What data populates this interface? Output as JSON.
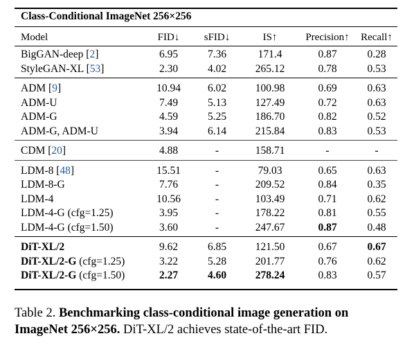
{
  "table": {
    "title": "Class-Conditional ImageNet 256×256",
    "headers": [
      "Model",
      "FID↓",
      "sFID↓",
      "IS↑",
      "Precision↑",
      "Recall↑"
    ],
    "groups": [
      {
        "rows": [
          {
            "model": "BigGAN-deep",
            "cite": "[2]",
            "cite_num": "2",
            "fid": "6.95",
            "sfid": "7.36",
            "is": "171.4",
            "precision": "0.87",
            "recall": "0.28"
          },
          {
            "model": "StyleGAN-XL",
            "cite": "[53]",
            "cite_num": "53",
            "fid": "2.30",
            "sfid": "4.02",
            "is": "265.12",
            "precision": "0.78",
            "recall": "0.53"
          }
        ]
      },
      {
        "rows": [
          {
            "model": "ADM",
            "cite": "[9]",
            "cite_num": "9",
            "fid": "10.94",
            "sfid": "6.02",
            "is": "100.98",
            "precision": "0.69",
            "recall": "0.63"
          },
          {
            "model": "ADM-U",
            "cite": "",
            "cite_num": "",
            "fid": "7.49",
            "sfid": "5.13",
            "is": "127.49",
            "precision": "0.72",
            "recall": "0.63"
          },
          {
            "model": "ADM-G",
            "cite": "",
            "cite_num": "",
            "fid": "4.59",
            "sfid": "5.25",
            "is": "186.70",
            "precision": "0.82",
            "recall": "0.52"
          },
          {
            "model": "ADM-G, ADM-U",
            "cite": "",
            "cite_num": "",
            "fid": "3.94",
            "sfid": "6.14",
            "is": "215.84",
            "precision": "0.83",
            "recall": "0.53"
          }
        ]
      },
      {
        "rows": [
          {
            "model": "CDM",
            "cite": "[20]",
            "cite_num": "20",
            "fid": "4.88",
            "sfid": "-",
            "is": "158.71",
            "precision": "-",
            "recall": "-"
          }
        ]
      },
      {
        "rows": [
          {
            "model": "LDM-8",
            "cite": "[48]",
            "cite_num": "48",
            "fid": "15.51",
            "sfid": "-",
            "is": "79.03",
            "precision": "0.65",
            "recall": "0.63"
          },
          {
            "model": "LDM-8-G",
            "cite": "",
            "cite_num": "",
            "fid": "7.76",
            "sfid": "-",
            "is": "209.52",
            "precision": "0.84",
            "recall": "0.35"
          },
          {
            "model": "LDM-4",
            "cite": "",
            "cite_num": "",
            "fid": "10.56",
            "sfid": "-",
            "is": "103.49",
            "precision": "0.71",
            "recall": "0.62"
          },
          {
            "model": "LDM-4-G (cfg=1.25)",
            "cite": "",
            "cite_num": "",
            "fid": "3.95",
            "sfid": "-",
            "is": "178.22",
            "precision": "0.81",
            "recall": "0.55"
          },
          {
            "model": "LDM-4-G (cfg=1.50)",
            "cite": "",
            "cite_num": "",
            "fid": "3.60",
            "sfid": "-",
            "is": "247.67",
            "precision": "0.87",
            "recall": "0.48",
            "bold": [
              "precision"
            ]
          }
        ]
      },
      {
        "rows": [
          {
            "model": "DiT-XL/2",
            "cite": "",
            "cite_num": "",
            "fid": "9.62",
            "sfid": "6.85",
            "is": "121.50",
            "precision": "0.67",
            "recall": "0.67",
            "bold": [
              "model",
              "recall"
            ]
          },
          {
            "model": "DiT-XL/2-G",
            "model_suffix": " (cfg=1.25)",
            "cite": "",
            "cite_num": "",
            "fid": "3.22",
            "sfid": "5.28",
            "is": "201.77",
            "precision": "0.76",
            "recall": "0.62",
            "bold": [
              "model"
            ]
          },
          {
            "model": "DiT-XL/2-G",
            "model_suffix": " (cfg=1.50)",
            "cite": "",
            "cite_num": "",
            "fid": "2.27",
            "sfid": "4.60",
            "is": "278.24",
            "precision": "0.83",
            "recall": "0.57",
            "bold": [
              "model",
              "fid",
              "sfid",
              "is"
            ]
          }
        ]
      }
    ]
  },
  "caption": {
    "label": "Table 2.",
    "bold_text": "Benchmarking class-conditional image generation on ImageNet 256×256.",
    "bold_line1": "Benchmarking class-conditional image generation on",
    "bold_line2": "ImageNet 256×256.",
    "rest": " DiT-XL/2 achieves state-of-the-art FID."
  },
  "colors": {
    "text": "#000000",
    "citation": "#1f5aa8",
    "background": "#ffffff"
  }
}
